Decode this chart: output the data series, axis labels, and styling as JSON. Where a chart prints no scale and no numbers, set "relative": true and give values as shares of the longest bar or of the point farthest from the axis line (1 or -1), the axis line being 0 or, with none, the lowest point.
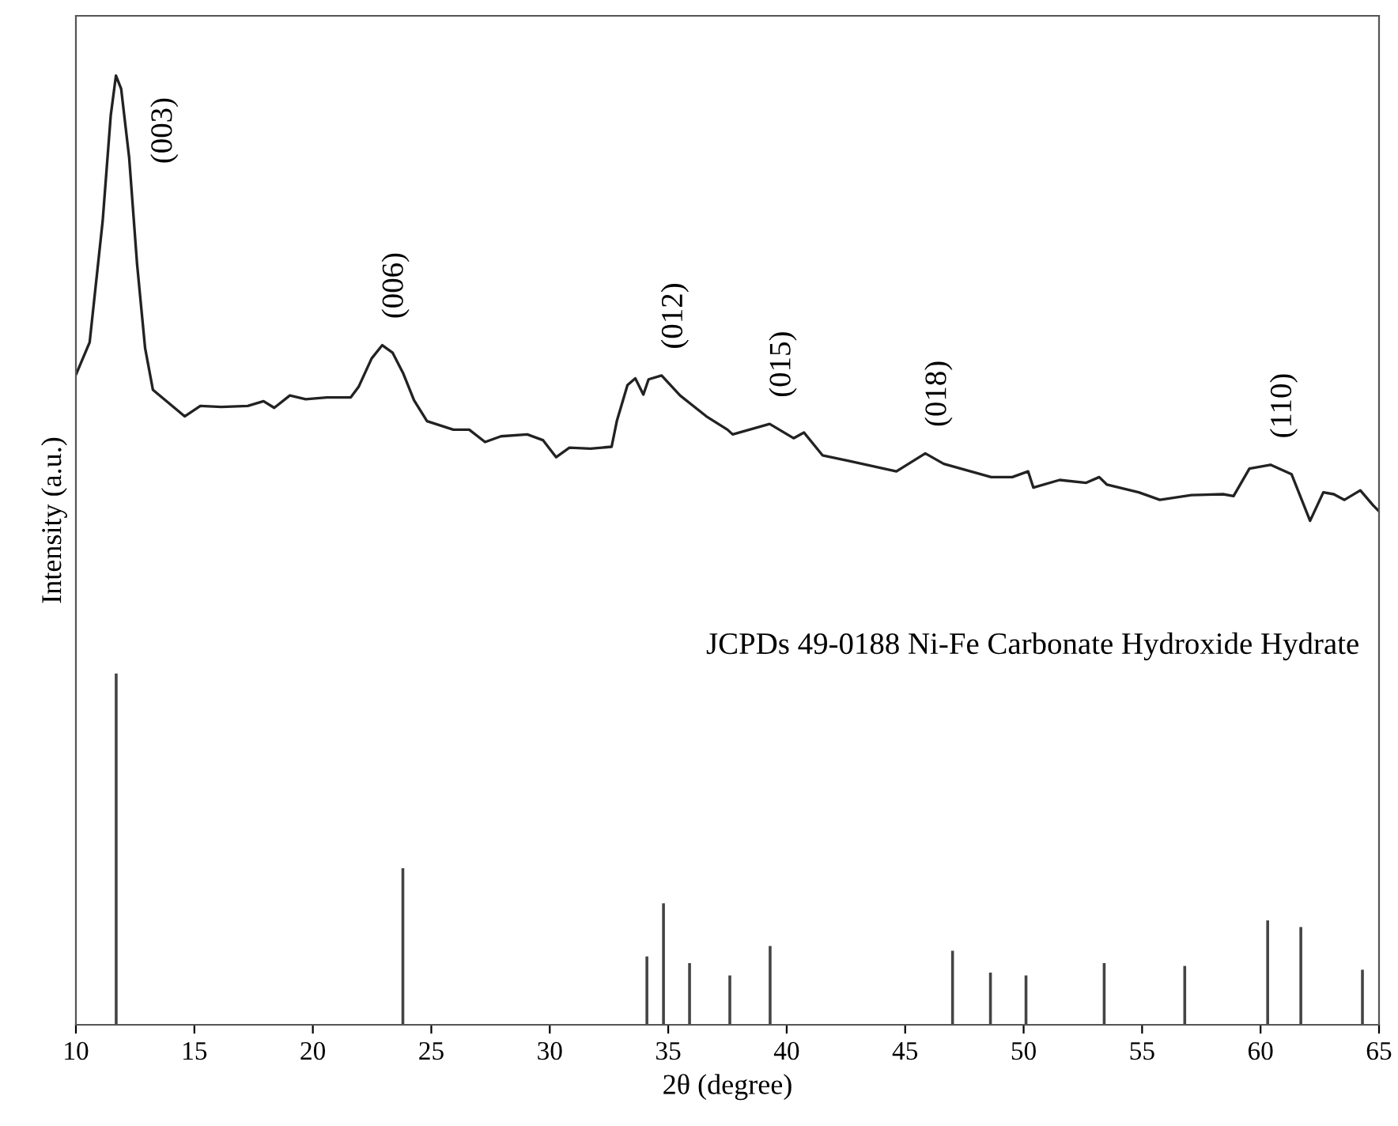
{
  "chart_data": {
    "type": "line",
    "relative": true,
    "xlabel": "2θ (degree)",
    "ylabel": "Intensity (a.u.)",
    "xlim": [
      10,
      65
    ],
    "xticks": [
      10,
      15,
      20,
      25,
      30,
      35,
      40,
      45,
      50,
      55,
      60,
      65
    ],
    "tick_labels": "x",
    "grid": false,
    "marker": "none",
    "line_style": "solid",
    "series": [
      {
        "color": "#222222",
        "x": [
          10.02,
          10.58,
          11.13,
          11.47,
          11.69,
          11.91,
          12.25,
          12.58,
          12.92,
          13.25,
          13.92,
          14.59,
          15.25,
          16.14,
          17.25,
          17.92,
          18.37,
          19.03,
          19.7,
          20.59,
          21.6,
          21.93,
          22.48,
          22.93,
          23.37,
          23.82,
          24.27,
          24.82,
          25.93,
          26.6,
          27.27,
          27.94,
          29.05,
          29.71,
          30.27,
          30.83,
          31.72,
          32.61,
          32.83,
          33.28,
          33.61,
          33.95,
          34.17,
          34.72,
          35.5,
          36.61,
          37.5,
          37.72,
          39.28,
          40.29,
          40.73,
          41.51,
          42.62,
          44.63,
          45.85,
          46.63,
          48.63,
          49.52,
          50.19,
          50.41,
          51.52,
          52.64,
          53.19,
          53.52,
          54.86,
          55.75,
          57.08,
          58.42,
          58.86,
          59.53,
          60.42,
          61.31,
          62.09,
          62.65,
          63.09,
          63.54,
          64.21,
          64.76,
          65.0
        ],
        "values": [
          0.686,
          0.719,
          0.847,
          0.958,
          1.0,
          0.986,
          0.913,
          0.802,
          0.713,
          0.669,
          0.655,
          0.641,
          0.652,
          0.651,
          0.652,
          0.657,
          0.65,
          0.663,
          0.659,
          0.661,
          0.661,
          0.672,
          0.702,
          0.716,
          0.708,
          0.686,
          0.658,
          0.636,
          0.627,
          0.627,
          0.614,
          0.62,
          0.622,
          0.616,
          0.598,
          0.608,
          0.607,
          0.609,
          0.636,
          0.674,
          0.681,
          0.664,
          0.68,
          0.684,
          0.663,
          0.641,
          0.627,
          0.622,
          0.633,
          0.618,
          0.624,
          0.6,
          0.594,
          0.583,
          0.602,
          0.591,
          0.577,
          0.577,
          0.583,
          0.566,
          0.574,
          0.571,
          0.577,
          0.569,
          0.561,
          0.553,
          0.558,
          0.559,
          0.557,
          0.586,
          0.59,
          0.58,
          0.531,
          0.561,
          0.559,
          0.553,
          0.563,
          0.547,
          0.541
        ]
      },
      {
        "type": "bar",
        "color": "#444444",
        "x": [
          11.7,
          23.8,
          34.1,
          34.8,
          35.9,
          37.6,
          39.3,
          47.0,
          48.6,
          50.1,
          53.4,
          56.8,
          60.3,
          61.7,
          64.3
        ],
        "values": [
          0.37,
          0.165,
          0.072,
          0.128,
          0.065,
          0.052,
          0.083,
          0.078,
          0.055,
          0.052,
          0.065,
          0.062,
          0.11,
          0.103,
          0.058
        ]
      }
    ],
    "annotations": [
      {
        "text": "(003)",
        "x": 11.69,
        "y": 1.0
      },
      {
        "text": "(006)",
        "x": 22.93,
        "y": 0.716
      },
      {
        "text": "(012)",
        "x": 34.72,
        "y": 0.684
      },
      {
        "text": "(015)",
        "x": 39.28,
        "y": 0.633
      },
      {
        "text": "(018)",
        "x": 45.85,
        "y": 0.602
      },
      {
        "text": "(110)",
        "x": 60.42,
        "y": 0.59
      },
      "JCPDs 49-0188 Ni-Fe Carbonate Hydroxide Hydrate"
    ]
  }
}
